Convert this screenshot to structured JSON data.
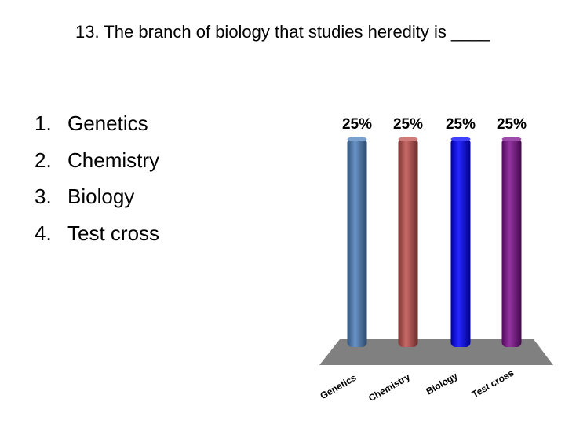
{
  "question": "13. The branch of biology that studies heredity is ____",
  "options": [
    {
      "number": "1.",
      "text": "Genetics"
    },
    {
      "number": "2.",
      "text": "Chemistry"
    },
    {
      "number": "3.",
      "text": "Biology"
    },
    {
      "number": "4.",
      "text": "Test cross"
    }
  ],
  "chart_data": {
    "type": "bar",
    "categories": [
      "Genetics",
      "Chemistry",
      "Biology",
      "Test cross"
    ],
    "values": [
      25,
      25,
      25,
      25
    ],
    "value_labels": [
      "25%",
      "25%",
      "25%",
      "25%"
    ],
    "colors": [
      "#4f81bd",
      "#c0504d",
      "#0000ff",
      "#7f0f8f"
    ],
    "floor_color": "#808080",
    "title": "",
    "xlabel": "",
    "ylabel": "",
    "ylim": [
      0,
      25
    ],
    "grid": false,
    "legend": "none"
  }
}
